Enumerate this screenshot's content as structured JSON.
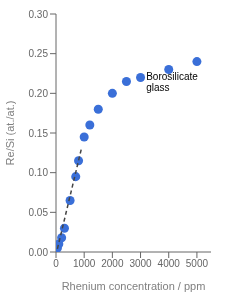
{
  "chart_data": {
    "type": "scatter",
    "xlabel": "Rhenium concentration / ppm",
    "ylabel": "Re/Si (at./at.)",
    "series": [
      {
        "type": "scatter",
        "marker": "circle",
        "color": "#3a6fd8",
        "x": [
          50,
          100,
          200,
          300,
          500,
          700,
          800,
          1000,
          1200,
          1500,
          2000,
          2500,
          3000,
          4000,
          5000
        ],
        "values": [
          0.005,
          0.01,
          0.018,
          0.03,
          0.065,
          0.095,
          0.115,
          0.145,
          0.16,
          0.18,
          0.2,
          0.215,
          0.22,
          0.23,
          0.24
        ]
      },
      {
        "type": "line",
        "line_style": "dashed",
        "color": "#444444",
        "x": [
          50,
          900
        ],
        "values": [
          0.004,
          0.13
        ]
      }
    ],
    "xlim": [
      0,
      5500
    ],
    "ylim": [
      0,
      0.3
    ],
    "xticks": [
      0,
      1000,
      2000,
      3000,
      4000,
      5000
    ],
    "yticks": [
      {
        "value": 0,
        "label": "0.00"
      },
      0.05,
      {
        "value": 0.1,
        "label": "0.10"
      },
      0.15,
      {
        "value": 0.2,
        "label": "0.20"
      },
      0.25,
      {
        "value": 0.3,
        "label": "0.30"
      }
    ],
    "annotations": [
      {
        "text": "Borosilicate\nglass",
        "x": 3200,
        "y": 0.215
      }
    ],
    "grid": false
  }
}
